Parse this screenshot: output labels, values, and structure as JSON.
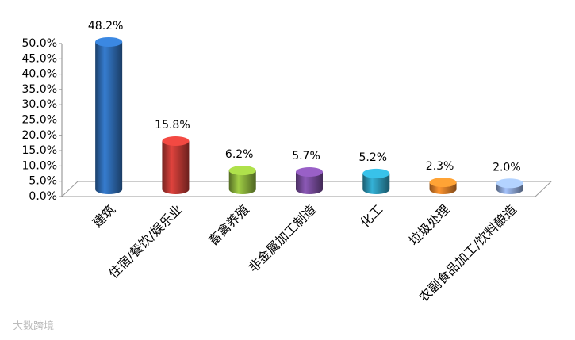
{
  "chart_data": {
    "type": "bar",
    "style": "cylinder-3d",
    "categories": [
      "建筑",
      "住宿/餐饮/娱乐业",
      "畜禽养殖",
      "非金属加工制造",
      "化工",
      "垃圾处理",
      "农副食品加工/饮料酿造"
    ],
    "values": [
      48.2,
      15.8,
      6.2,
      5.7,
      5.2,
      2.3,
      2.0
    ],
    "value_labels": [
      "48.2%",
      "15.8%",
      "6.2%",
      "5.7%",
      "5.2%",
      "2.3%",
      "2.0%"
    ],
    "colors": [
      "#2f6db5",
      "#c23a35",
      "#8cb43c",
      "#7a4d9f",
      "#2d9bbb",
      "#e8822a",
      "#8fa9d9"
    ],
    "ylim": [
      0,
      50
    ],
    "yticks": [
      {
        "value": 0,
        "label": "0.0%"
      },
      {
        "value": 5,
        "label": "5.0%"
      },
      {
        "value": 10,
        "label": "10.0%"
      },
      {
        "value": 15,
        "label": "15.0%"
      },
      {
        "value": 20,
        "label": "20.0%"
      },
      {
        "value": 25,
        "label": "25.0%"
      },
      {
        "value": 30,
        "label": "30.0%"
      },
      {
        "value": 35,
        "label": "35.0%"
      },
      {
        "value": 40,
        "label": "40.0%"
      },
      {
        "value": 45,
        "label": "45.0%"
      },
      {
        "value": 50,
        "label": "50.0%"
      }
    ],
    "grid": false,
    "watermark": "大数跨境"
  }
}
